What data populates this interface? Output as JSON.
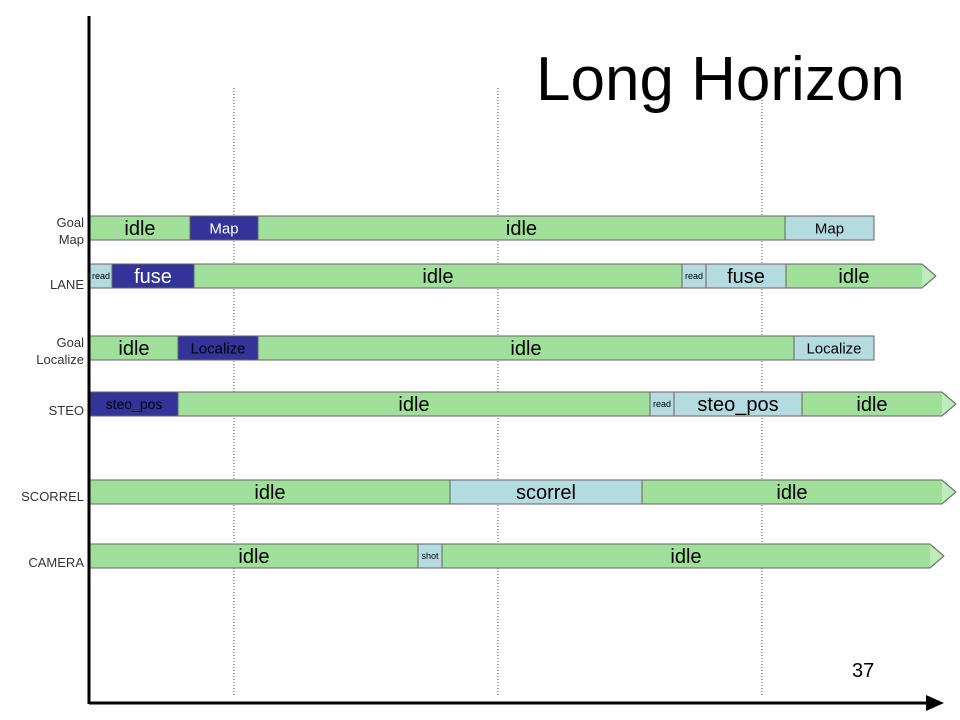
{
  "title": "Long Horizon",
  "page_number": "37",
  "colors": {
    "idle": "#a0e09a",
    "dark": "#333399",
    "light": "#b4dce0",
    "axis": "#000000",
    "guide": "#555555"
  },
  "rows": [
    {
      "label_lines": [
        "Goal",
        "Map"
      ],
      "segments": [
        {
          "label": "idle",
          "kind": "idle",
          "start": 0,
          "end": 100
        },
        {
          "label": "Map",
          "kind": "dark",
          "start": 100,
          "end": 168
        },
        {
          "label": "idle",
          "kind": "idle",
          "start": 168,
          "end": 695
        },
        {
          "label": "Map",
          "kind": "light",
          "start": 695,
          "end": 784
        }
      ]
    },
    {
      "label_lines": [
        "LANE"
      ],
      "segments": [
        {
          "label": "read",
          "kind": "light",
          "start": 0,
          "end": 22
        },
        {
          "label": "fuse",
          "kind": "dark",
          "start": 22,
          "end": 104
        },
        {
          "label": "idle",
          "kind": "idle",
          "start": 104,
          "end": 592
        },
        {
          "label": "read",
          "kind": "light",
          "start": 592,
          "end": 616
        },
        {
          "label": "fuse",
          "kind": "light",
          "start": 616,
          "end": 696
        },
        {
          "label": "idle",
          "kind": "idle",
          "start": 696,
          "end": 832,
          "arrow": true
        }
      ]
    },
    {
      "label_lines": [
        "Goal",
        "Localize"
      ],
      "segments": [
        {
          "label": "idle",
          "kind": "idle",
          "start": 0,
          "end": 88
        },
        {
          "label": "Localize",
          "kind": "dark",
          "start": 88,
          "end": 168
        },
        {
          "label": "idle",
          "kind": "idle",
          "start": 168,
          "end": 704
        },
        {
          "label": "Localize",
          "kind": "light",
          "start": 704,
          "end": 784
        }
      ]
    },
    {
      "label_lines": [
        "STEO"
      ],
      "segments": [
        {
          "label": "steo_pos",
          "kind": "dark",
          "start": 0,
          "end": 88
        },
        {
          "label": "idle",
          "kind": "idle",
          "start": 88,
          "end": 560
        },
        {
          "label": "read",
          "kind": "light",
          "start": 560,
          "end": 584
        },
        {
          "label": "steo_pos",
          "kind": "light",
          "start": 584,
          "end": 712
        },
        {
          "label": "idle",
          "kind": "idle",
          "start": 712,
          "end": 852,
          "arrow": true
        }
      ]
    },
    {
      "label_lines": [
        "SCORREL"
      ],
      "segments": [
        {
          "label": "idle",
          "kind": "idle",
          "start": 0,
          "end": 360
        },
        {
          "label": "scorrel",
          "kind": "light",
          "start": 360,
          "end": 552
        },
        {
          "label": "idle",
          "kind": "idle",
          "start": 552,
          "end": 852,
          "arrow": true
        }
      ]
    },
    {
      "label_lines": [
        "CAMERA"
      ],
      "segments": [
        {
          "label": "idle",
          "kind": "idle",
          "start": 0,
          "end": 328
        },
        {
          "label": "shot",
          "kind": "light",
          "start": 328,
          "end": 352
        },
        {
          "label": "idle",
          "kind": "idle",
          "start": 352,
          "end": 840,
          "arrow": true
        }
      ]
    }
  ],
  "guides": [
    144,
    408,
    672
  ]
}
